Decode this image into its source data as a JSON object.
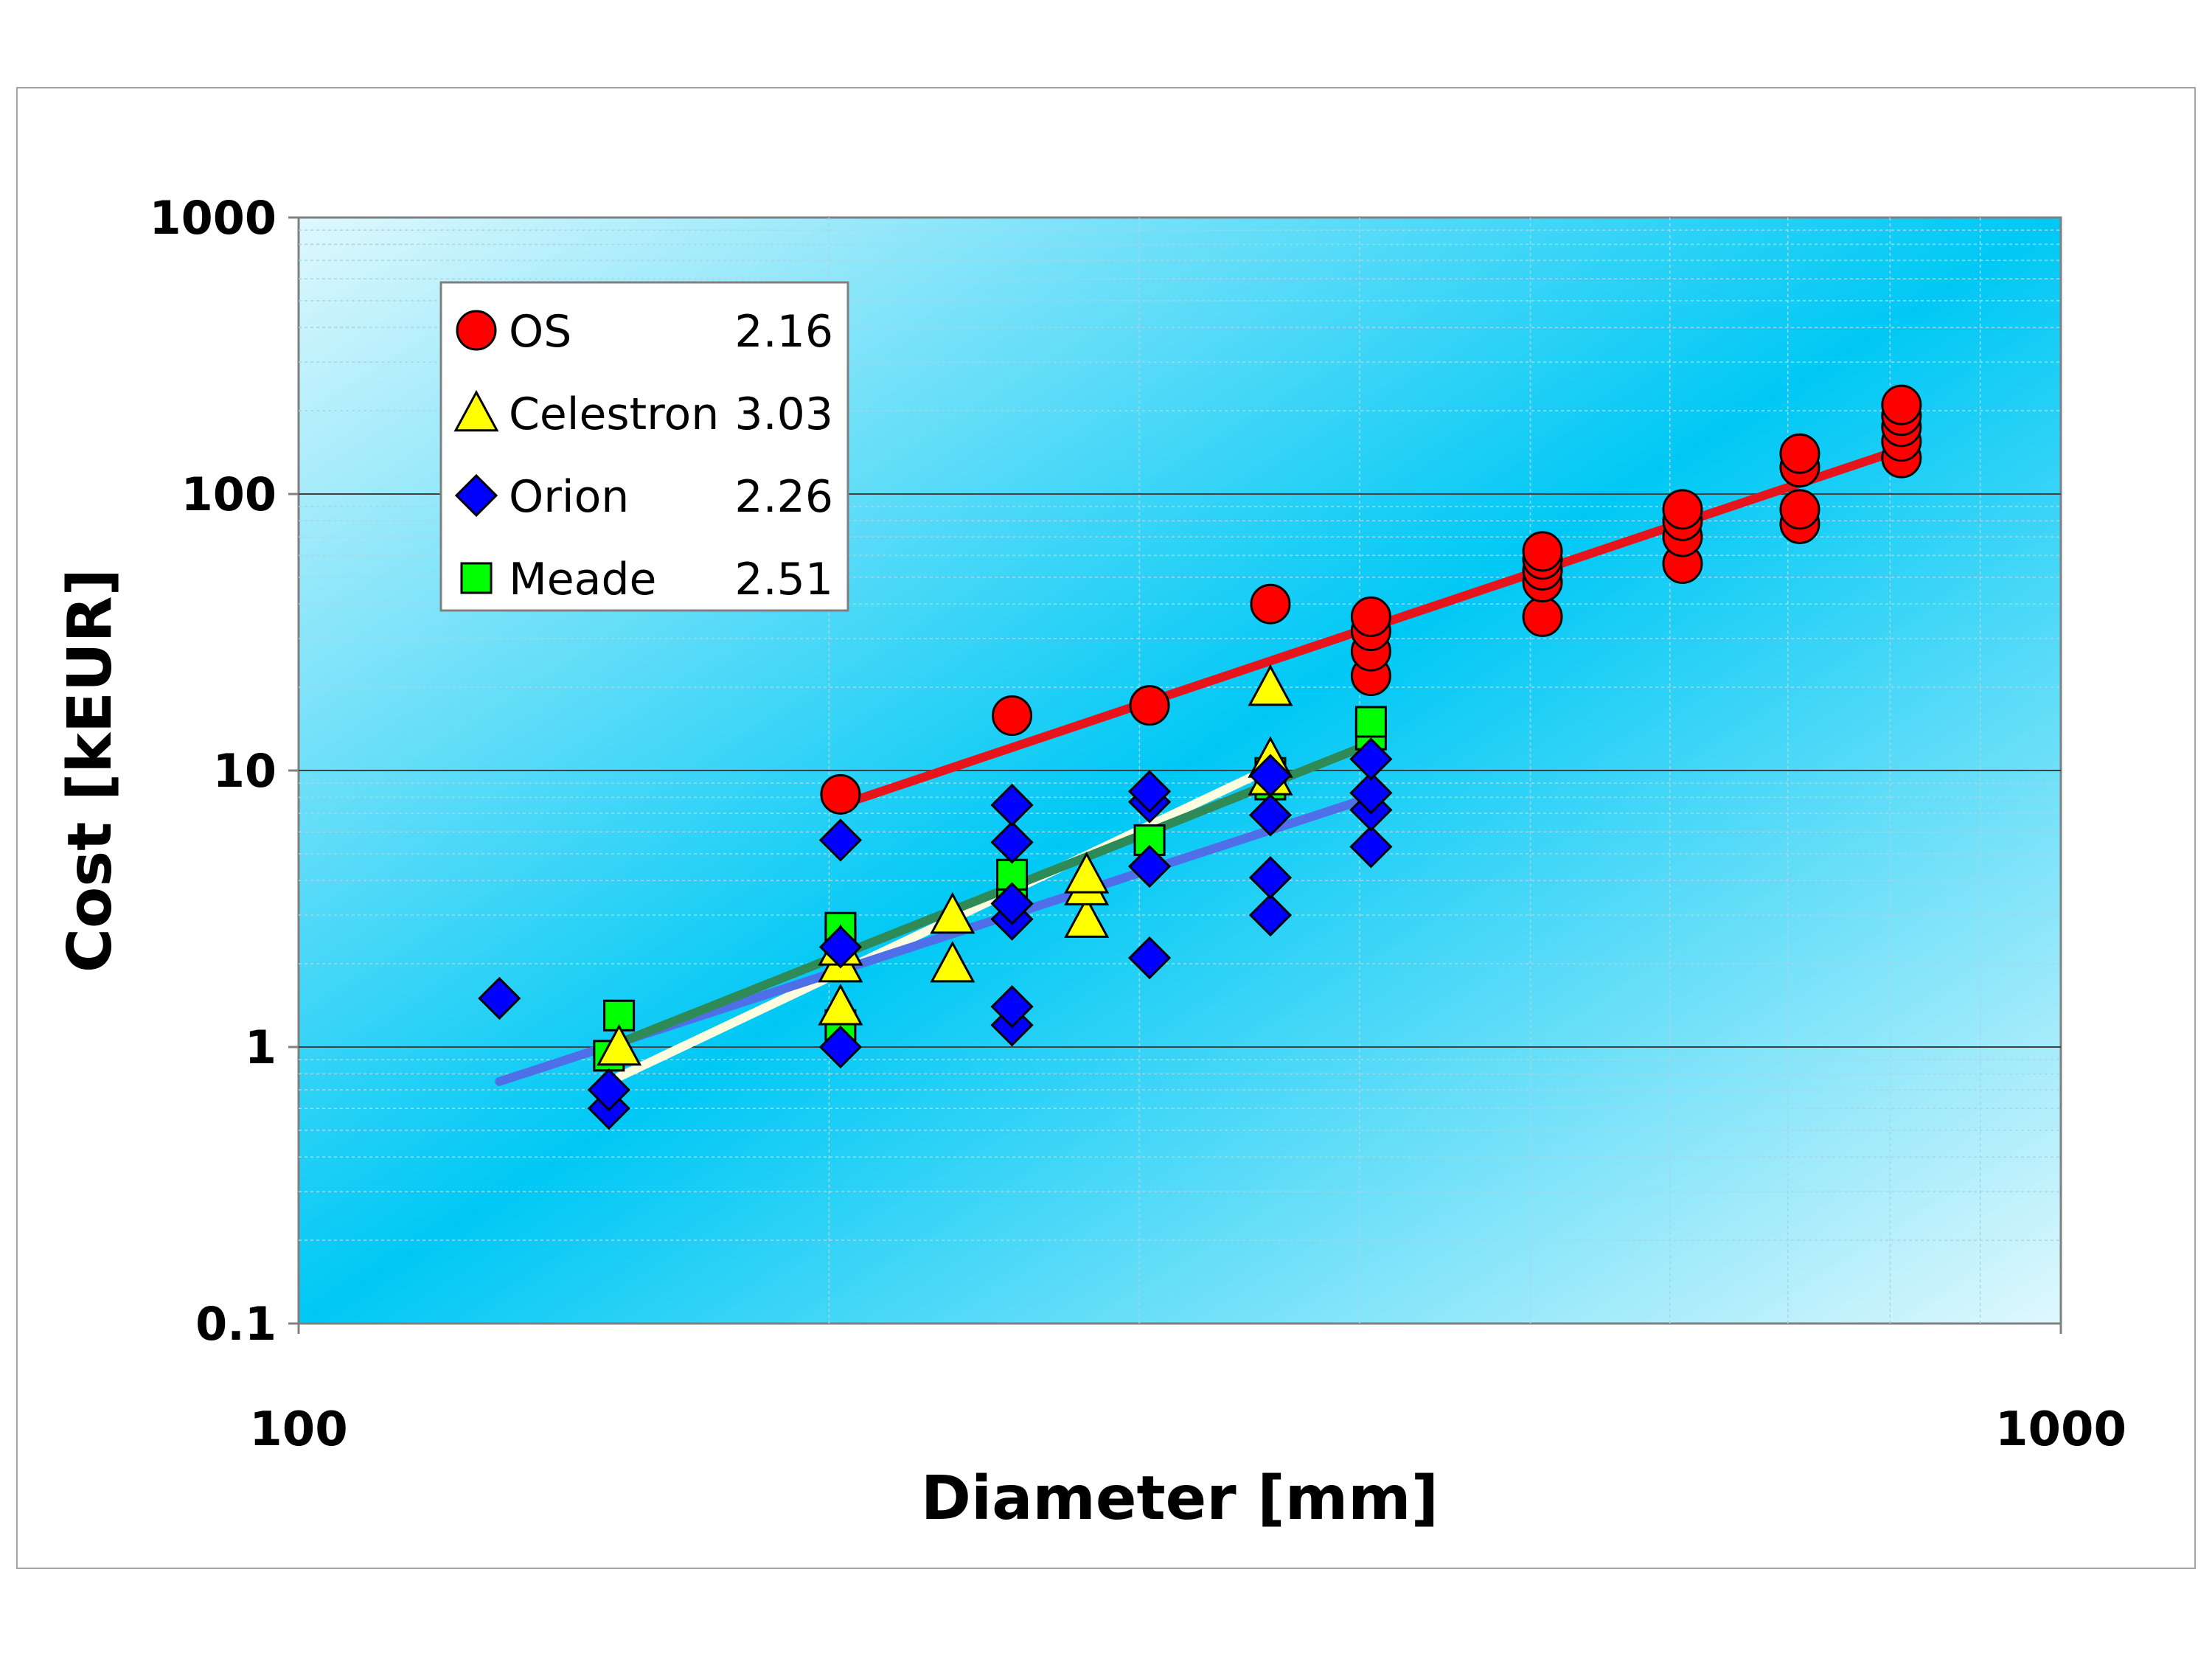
{
  "chart_data": {
    "type": "scatter",
    "xlabel": "Diameter [mm]",
    "ylabel": "Cost [kEUR]",
    "xscale": "log",
    "yscale": "log",
    "xlim": [
      100,
      1000
    ],
    "ylim": [
      0.1,
      1000
    ],
    "xticks": [
      "100",
      "1000"
    ],
    "yticks": [
      "0.1",
      "1",
      "10",
      "100",
      "1000"
    ],
    "grid": true,
    "legend_position": "top-left",
    "series": [
      {
        "name": "OS",
        "exponent": "2.16",
        "marker": "circle",
        "color": "#ff0000",
        "trend_color": "#e8141c",
        "points": [
          [
            203,
            8.2
          ],
          [
            254,
            15.8
          ],
          [
            304,
            17.2
          ],
          [
            356,
            40
          ],
          [
            406,
            22
          ],
          [
            406,
            27
          ],
          [
            406,
            32
          ],
          [
            406,
            36
          ],
          [
            508,
            36
          ],
          [
            508,
            48
          ],
          [
            508,
            53
          ],
          [
            508,
            58
          ],
          [
            508,
            62
          ],
          [
            610,
            56
          ],
          [
            610,
            70
          ],
          [
            610,
            80
          ],
          [
            610,
            88
          ],
          [
            711,
            78
          ],
          [
            711,
            88
          ],
          [
            711,
            125
          ],
          [
            711,
            140
          ],
          [
            812,
            135
          ],
          [
            812,
            155
          ],
          [
            812,
            175
          ],
          [
            812,
            192
          ],
          [
            812,
            210
          ]
        ],
        "trend": [
          [
            203,
            7.5
          ],
          [
            812,
            145
          ]
        ]
      },
      {
        "name": "Celestron",
        "exponent": "3.03",
        "marker": "triangle",
        "color": "#ffff00",
        "trend_color": "#fffde0",
        "points": [
          [
            152,
            1.0
          ],
          [
            203,
            1.4
          ],
          [
            203,
            2.0
          ],
          [
            203,
            2.3
          ],
          [
            235,
            2.0
          ],
          [
            235,
            3.0
          ],
          [
            280,
            2.9
          ],
          [
            280,
            3.8
          ],
          [
            280,
            4.2
          ],
          [
            356,
            9.5
          ],
          [
            356,
            11
          ],
          [
            356,
            20
          ]
        ],
        "trend": [
          [
            152,
            0.78
          ],
          [
            356,
            10.2
          ]
        ]
      },
      {
        "name": "Orion",
        "exponent": "2.26",
        "marker": "diamond",
        "color": "#0000ff",
        "trend_color": "#4f6fe8",
        "points": [
          [
            130,
            1.5
          ],
          [
            150,
            0.6
          ],
          [
            150,
            0.7
          ],
          [
            203,
            1.0
          ],
          [
            203,
            2.3
          ],
          [
            203,
            5.6
          ],
          [
            254,
            1.2
          ],
          [
            254,
            1.4
          ],
          [
            254,
            2.9
          ],
          [
            254,
            3.3
          ],
          [
            254,
            5.5
          ],
          [
            254,
            7.5
          ],
          [
            304,
            2.1
          ],
          [
            304,
            4.5
          ],
          [
            304,
            7.7
          ],
          [
            304,
            8.4
          ],
          [
            356,
            3.0
          ],
          [
            356,
            4.1
          ],
          [
            356,
            6.9
          ],
          [
            356,
            9.6
          ],
          [
            406,
            5.3
          ],
          [
            406,
            7.2
          ],
          [
            406,
            8.3
          ],
          [
            406,
            11
          ]
        ],
        "trend": [
          [
            130,
            0.75
          ],
          [
            406,
            8.0
          ]
        ]
      },
      {
        "name": "Meade",
        "exponent": "2.51",
        "marker": "square",
        "color": "#00ff00",
        "trend_color": "#2e8b57",
        "points": [
          [
            150,
            0.93
          ],
          [
            152,
            1.3
          ],
          [
            203,
            1.2
          ],
          [
            203,
            2.4
          ],
          [
            203,
            2.7
          ],
          [
            254,
            3.6
          ],
          [
            254,
            4.2
          ],
          [
            304,
            5.6
          ],
          [
            356,
            8.9
          ],
          [
            356,
            9.8
          ],
          [
            406,
            13.5
          ],
          [
            406,
            15
          ]
        ],
        "trend": [
          [
            150,
            1.0
          ],
          [
            406,
            12.5
          ]
        ]
      }
    ]
  }
}
